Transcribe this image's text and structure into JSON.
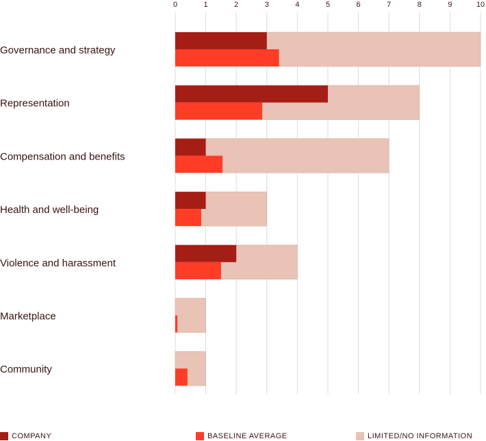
{
  "chart_data": {
    "type": "bar",
    "orientation": "horizontal",
    "categories": [
      "Governance and strategy",
      "Representation",
      "Compensation and benefits",
      "Health and well-being",
      "Violence and harassment",
      "Marketplace",
      "Community"
    ],
    "series": [
      {
        "name": "COMPANY",
        "values": [
          3,
          5,
          1,
          1,
          2,
          0,
          0
        ],
        "color": "#a51e16"
      },
      {
        "name": "BASELINE AVERAGE",
        "values": [
          3.4,
          2.85,
          1.55,
          0.85,
          1.5,
          0.07,
          0.4
        ],
        "color": "#ff3c26"
      },
      {
        "name": "LIMITED/NO INFORMATION",
        "values": [
          10,
          8,
          7,
          3,
          4,
          1,
          1
        ],
        "color": "#e8c3b6"
      }
    ],
    "x_ticks": [
      "0",
      "1",
      "2",
      "3",
      "4",
      "5",
      "6",
      "7",
      "8",
      "9",
      "10"
    ],
    "xlim": [
      0,
      10
    ],
    "grid": true,
    "legend_position": "bottom"
  }
}
